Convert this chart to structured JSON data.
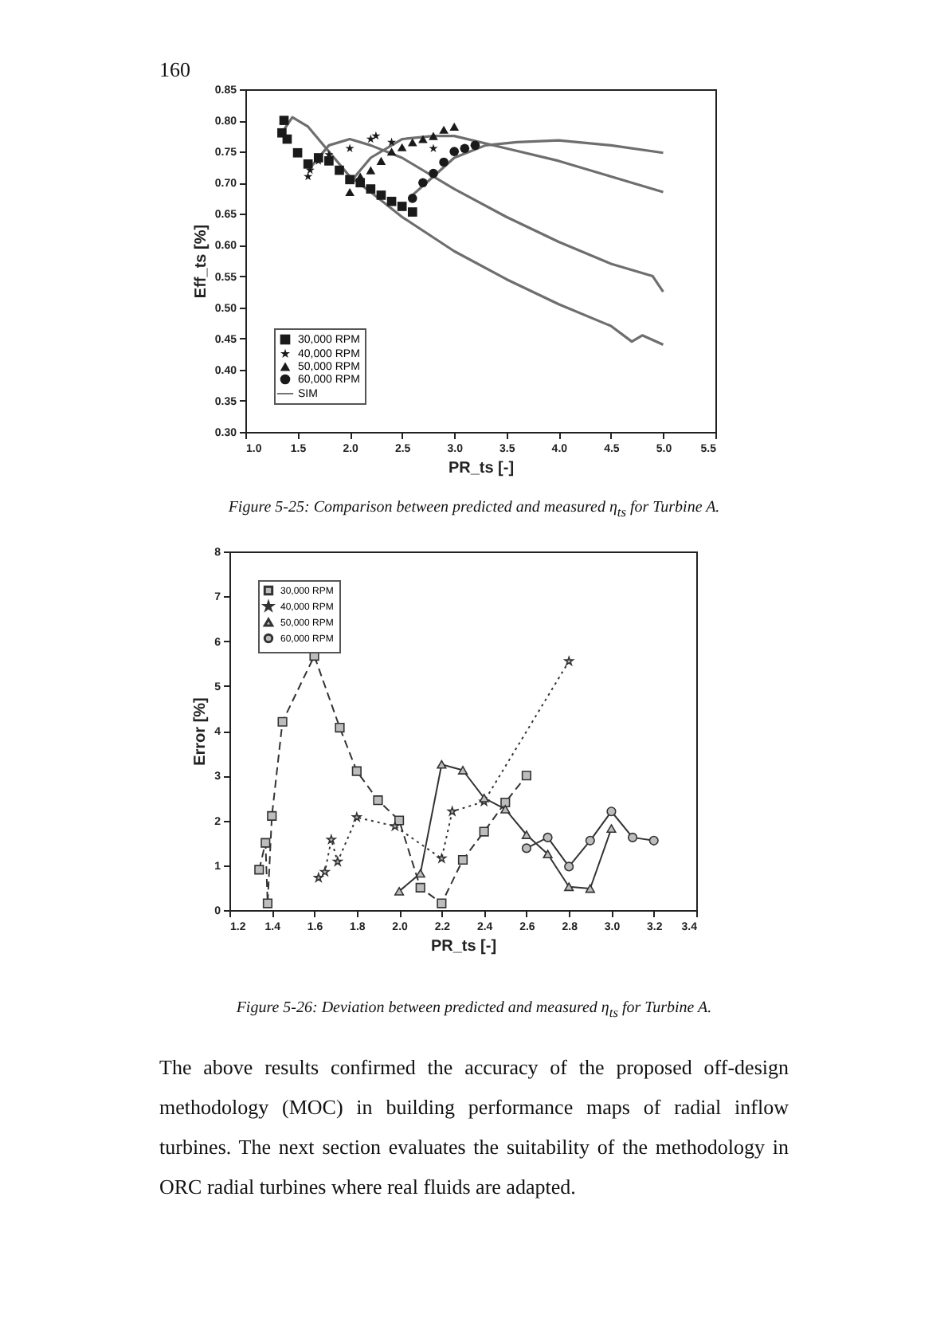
{
  "chart_data": [
    {
      "type": "scatter",
      "xlabel": "PR_ts [-]",
      "ylabel": "Eff_ts [%]",
      "annotations": [
        "160",
        "Figure 5-25: Comparison between predicted and measured η$_{ts}$ for Turbine A."
      ],
      "xlim": [
        1.0,
        5.5
      ],
      "xticks": [
        {
          "value": 1,
          "label": "1.0"
        },
        1.5,
        {
          "value": 2,
          "label": "2.0"
        },
        2.5,
        {
          "value": 3,
          "label": "3.0"
        },
        3.5,
        {
          "value": 4,
          "label": "4.0"
        },
        4.5,
        {
          "value": 5,
          "label": "5.0"
        },
        5.5
      ],
      "ylim": [
        0.3,
        0.85
      ],
      "yticks": [
        {
          "value": 0.3,
          "label": "0.30"
        },
        0.35,
        {
          "value": 0.4,
          "label": "0.40"
        },
        0.45,
        {
          "value": 0.5,
          "label": "0.50"
        },
        0.55,
        {
          "value": 0.6,
          "label": "0.60"
        },
        0.65,
        {
          "value": 0.7,
          "label": "0.70"
        },
        0.75,
        {
          "value": 0.8,
          "label": "0.80"
        },
        0.85
      ],
      "grid": false,
      "legend": "bottom left",
      "series": [
        {
          "name": "30,000 RPM",
          "type": "scatter",
          "marker": "square",
          "color": "#1a1a1a",
          "x": [
            1.35,
            1.37,
            1.4,
            1.5,
            1.6,
            1.7,
            1.8,
            1.9,
            2.0,
            2.1,
            2.2,
            2.3,
            2.4,
            2.5,
            2.6
          ],
          "values": [
            0.78,
            0.8,
            0.77,
            0.748,
            0.73,
            0.74,
            0.735,
            0.72,
            0.705,
            0.7,
            0.69,
            0.68,
            0.67,
            0.662,
            0.653
          ]
        },
        {
          "name": "40,000 RPM",
          "type": "scatter",
          "marker": "star",
          "color": "#1a1a1a",
          "x": [
            1.6,
            1.62,
            1.7,
            1.8,
            2.0,
            2.2,
            2.25,
            2.4,
            2.8
          ],
          "values": [
            0.71,
            0.72,
            0.735,
            0.745,
            0.755,
            0.77,
            0.775,
            0.765,
            0.755
          ]
        },
        {
          "name": "50,000 RPM",
          "type": "scatter",
          "marker": "triangle",
          "color": "#1a1a1a",
          "x": [
            2.0,
            2.1,
            2.2,
            2.3,
            2.4,
            2.5,
            2.6,
            2.7,
            2.8,
            2.9,
            3.0
          ],
          "values": [
            0.685,
            0.71,
            0.72,
            0.735,
            0.75,
            0.757,
            0.765,
            0.77,
            0.775,
            0.785,
            0.79
          ]
        },
        {
          "name": "60,000 RPM",
          "type": "scatter",
          "marker": "circle",
          "color": "#1a1a1a",
          "x": [
            2.6,
            2.7,
            2.8,
            2.9,
            3.0,
            3.1,
            3.2
          ],
          "values": [
            0.675,
            0.7,
            0.715,
            0.733,
            0.75,
            0.755,
            0.76
          ]
        },
        {
          "name": "SIM",
          "type": "line",
          "marker": "none",
          "color": "#6e6e6e",
          "x": [
            1.35,
            1.45,
            1.6,
            1.8,
            2.0,
            2.2,
            2.5,
            3.0,
            3.5,
            4.0,
            4.5,
            4.7,
            4.8,
            5.0
          ],
          "values": [
            0.78,
            0.805,
            0.79,
            0.75,
            0.71,
            0.685,
            0.645,
            0.59,
            0.545,
            0.505,
            0.47,
            0.445,
            0.455,
            0.44
          ]
        },
        {
          "type": "line",
          "marker": "none",
          "color": "#6e6e6e",
          "x": [
            1.6,
            1.8,
            2.0,
            2.2,
            2.5,
            3.0,
            3.5,
            4.0,
            4.5,
            4.9,
            5.0
          ],
          "values": [
            0.72,
            0.76,
            0.77,
            0.76,
            0.74,
            0.69,
            0.645,
            0.605,
            0.57,
            0.55,
            0.525
          ]
        },
        {
          "type": "line",
          "marker": "none",
          "color": "#6e6e6e",
          "x": [
            2.0,
            2.2,
            2.5,
            2.8,
            3.0,
            3.5,
            4.0,
            4.5,
            5.0
          ],
          "values": [
            0.7,
            0.74,
            0.77,
            0.775,
            0.775,
            0.755,
            0.735,
            0.71,
            0.685
          ]
        },
        {
          "type": "line",
          "marker": "none",
          "color": "#6e6e6e",
          "x": [
            2.6,
            2.8,
            3.0,
            3.3,
            3.6,
            4.0,
            4.5,
            5.0
          ],
          "values": [
            0.68,
            0.71,
            0.74,
            0.76,
            0.765,
            0.768,
            0.76,
            0.748
          ]
        }
      ]
    },
    {
      "type": "line",
      "xlabel": "PR_ts [-]",
      "ylabel": "Error [%]",
      "annotations": [
        "Figure 5-26: Deviation between predicted and measured η$_{ts}$ for Turbine A.",
        "The above results confirmed the accuracy of the proposed off-design methodology (MOC) in building performance maps of radial inflow turbines. The next section evaluates the suitability of the methodology in ORC radial turbines where real fluids are adapted."
      ],
      "xlim": [
        1.2,
        3.4
      ],
      "xticks": [
        1.2,
        1.4,
        1.6,
        1.8,
        {
          "value": 2,
          "label": "2.0"
        },
        2.2,
        2.4,
        2.6,
        2.8,
        {
          "value": 3,
          "label": "3.0"
        },
        3.2,
        3.4
      ],
      "ylim": [
        0,
        8
      ],
      "yticks": [
        0,
        1,
        2,
        3,
        4,
        5,
        6,
        7,
        8
      ],
      "grid": false,
      "legend": "top left",
      "series": [
        {
          "name": "30,000 RPM",
          "marker": "square",
          "line_style": "dashed",
          "color": "#333333",
          "x": [
            1.34,
            1.37,
            1.38,
            1.4,
            1.45,
            1.6,
            1.72,
            1.8,
            1.9,
            2.0,
            2.1,
            2.2,
            2.3,
            2.4,
            2.5,
            2.6
          ],
          "values": [
            0.9,
            1.5,
            0.15,
            2.1,
            4.2,
            5.67,
            4.07,
            3.1,
            2.45,
            2.0,
            0.5,
            0.15,
            1.12,
            1.75,
            2.4,
            3.0
          ]
        },
        {
          "name": "40,000 RPM",
          "marker": "star",
          "line_style": "dotted",
          "color": "#333333",
          "x": [
            1.62,
            1.65,
            1.68,
            1.71,
            1.8,
            1.98,
            2.2,
            2.25,
            2.4,
            2.8
          ],
          "values": [
            0.72,
            0.85,
            1.57,
            1.08,
            2.07,
            1.87,
            1.15,
            2.2,
            2.42,
            5.55
          ]
        },
        {
          "name": "50,000 RPM",
          "marker": "triangle",
          "line_style": "solid",
          "color": "#333333",
          "x": [
            2.0,
            2.1,
            2.2,
            2.3,
            2.4,
            2.5,
            2.6,
            2.7,
            2.8,
            2.9,
            3.0
          ],
          "values": [
            0.42,
            0.82,
            3.25,
            3.12,
            2.5,
            2.25,
            1.68,
            1.25,
            0.52,
            0.48,
            1.82
          ]
        },
        {
          "name": "60,000 RPM",
          "marker": "circle",
          "line_style": "solid",
          "color": "#333333",
          "x": [
            2.6,
            2.7,
            2.8,
            2.9,
            3.0,
            3.1,
            3.2
          ],
          "values": [
            1.38,
            1.62,
            0.97,
            1.55,
            2.2,
            1.62,
            1.55
          ]
        }
      ]
    }
  ]
}
